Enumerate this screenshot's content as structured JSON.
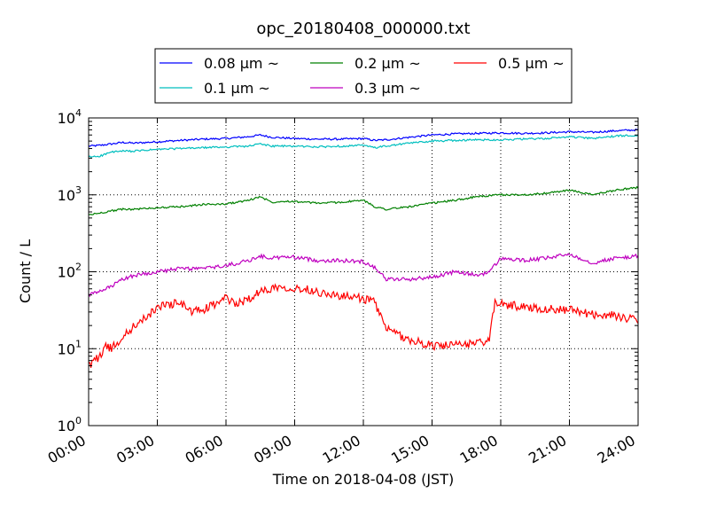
{
  "chart_data": {
    "type": "line",
    "title": "opc_20180408_000000.txt",
    "xlabel": "Time on 2018-04-08 (JST)",
    "ylabel": "Count / L",
    "xlim": [
      "00:00",
      "24:00"
    ],
    "ylim": [
      1,
      10000
    ],
    "y_scale": "log",
    "grid": true,
    "legend_position": "top-center",
    "x_ticks": [
      "00:00",
      "03:00",
      "06:00",
      "09:00",
      "12:00",
      "15:00",
      "18:00",
      "21:00",
      "24:00"
    ],
    "y_ticks": [
      {
        "base": "10",
        "exp": "0"
      },
      {
        "base": "10",
        "exp": "1"
      },
      {
        "base": "10",
        "exp": "2"
      },
      {
        "base": "10",
        "exp": "3"
      },
      {
        "base": "10",
        "exp": "4"
      }
    ],
    "series": [
      {
        "name": "0.08 μm ~",
        "color": "#0000ff",
        "x": [
          "00:00",
          "00:30",
          "01:00",
          "01:30",
          "02:00",
          "03:00",
          "04:00",
          "05:00",
          "06:00",
          "07:00",
          "07:30",
          "08:00",
          "08:30",
          "09:00",
          "10:00",
          "11:00",
          "12:00",
          "12:30",
          "13:00",
          "14:00",
          "15:00",
          "16:00",
          "17:00",
          "18:00",
          "19:00",
          "20:00",
          "21:00",
          "22:00",
          "23:00",
          "24:00"
        ],
        "values": [
          4300,
          4400,
          4600,
          4800,
          4700,
          4900,
          5100,
          5300,
          5400,
          5700,
          6000,
          5600,
          5500,
          5400,
          5300,
          5300,
          5400,
          5100,
          5200,
          5600,
          6000,
          6200,
          6300,
          6400,
          6300,
          6400,
          6600,
          6500,
          6800,
          7000
        ]
      },
      {
        "name": "0.1 μm ~",
        "color": "#00bfbf",
        "x": [
          "00:00",
          "00:30",
          "01:00",
          "01:30",
          "02:00",
          "03:00",
          "04:00",
          "05:00",
          "06:00",
          "07:00",
          "07:30",
          "08:00",
          "08:30",
          "09:00",
          "10:00",
          "11:00",
          "12:00",
          "12:30",
          "13:00",
          "14:00",
          "15:00",
          "16:00",
          "17:00",
          "18:00",
          "19:00",
          "20:00",
          "21:00",
          "22:00",
          "23:00",
          "24:00"
        ],
        "values": [
          3100,
          3200,
          3600,
          3700,
          3700,
          3900,
          4000,
          4100,
          4200,
          4300,
          4600,
          4300,
          4300,
          4300,
          4200,
          4300,
          4400,
          4100,
          4300,
          4700,
          5000,
          5100,
          5200,
          5200,
          5300,
          5400,
          5700,
          5400,
          5800,
          6000
        ]
      },
      {
        "name": "0.2 μm ~",
        "color": "#008000",
        "x": [
          "00:00",
          "00:30",
          "01:00",
          "01:30",
          "02:00",
          "03:00",
          "04:00",
          "05:00",
          "06:00",
          "07:00",
          "07:30",
          "08:00",
          "08:30",
          "09:00",
          "10:00",
          "11:00",
          "12:00",
          "12:30",
          "13:00",
          "14:00",
          "15:00",
          "16:00",
          "17:00",
          "18:00",
          "19:00",
          "20:00",
          "21:00",
          "22:00",
          "23:00",
          "24:00"
        ],
        "values": [
          550,
          580,
          620,
          650,
          650,
          680,
          700,
          750,
          760,
          850,
          950,
          800,
          830,
          820,
          780,
          800,
          850,
          700,
          650,
          700,
          780,
          850,
          950,
          1000,
          1000,
          1050,
          1150,
          1000,
          1150,
          1250
        ]
      },
      {
        "name": "0.3 μm ~",
        "color": "#bf00bf",
        "x": [
          "00:00",
          "00:30",
          "01:00",
          "01:30",
          "02:00",
          "03:00",
          "04:00",
          "05:00",
          "06:00",
          "07:00",
          "07:30",
          "08:00",
          "08:30",
          "09:00",
          "10:00",
          "11:00",
          "12:00",
          "12:30",
          "13:00",
          "14:00",
          "15:00",
          "16:00",
          "17:00",
          "17:30",
          "18:00",
          "19:00",
          "20:00",
          "21:00",
          "22:00",
          "23:00",
          "24:00"
        ],
        "values": [
          50,
          55,
          65,
          80,
          90,
          100,
          110,
          110,
          120,
          140,
          160,
          150,
          155,
          155,
          140,
          140,
          135,
          115,
          80,
          80,
          85,
          100,
          90,
          100,
          150,
          140,
          150,
          170,
          130,
          150,
          160
        ]
      },
      {
        "name": "0.5 μm ~",
        "color": "#ff0000",
        "x": [
          "00:00",
          "00:15",
          "00:30",
          "00:45",
          "01:00",
          "01:30",
          "02:00",
          "02:30",
          "03:00",
          "04:00",
          "04:30",
          "05:00",
          "06:00",
          "06:30",
          "07:00",
          "07:30",
          "08:00",
          "08:30",
          "09:00",
          "09:30",
          "10:00",
          "11:00",
          "12:00",
          "12:30",
          "13:00",
          "14:00",
          "15:00",
          "16:00",
          "17:00",
          "17:30",
          "17:45",
          "18:00",
          "19:00",
          "20:00",
          "21:00",
          "22:00",
          "23:00",
          "24:00"
        ],
        "values": [
          6,
          7,
          8,
          11,
          10,
          14,
          20,
          25,
          35,
          40,
          30,
          32,
          45,
          38,
          45,
          55,
          62,
          65,
          60,
          60,
          55,
          48,
          45,
          40,
          18,
          13,
          11,
          11,
          12,
          13,
          40,
          38,
          35,
          33,
          32,
          28,
          27,
          23
        ]
      }
    ]
  }
}
